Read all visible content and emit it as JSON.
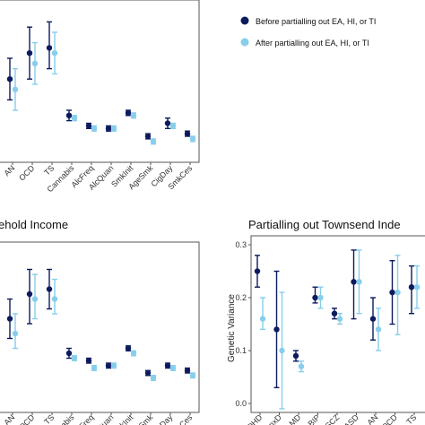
{
  "colors": {
    "before": "#0d1b5e",
    "after": "#87ceeb",
    "frame": "#555555",
    "tick": "#333333"
  },
  "legend": {
    "before_label": "Before partialling out EA, HI, or TI",
    "after_label": "After partialling out EA, HI, or TI"
  },
  "chart_data": [
    {
      "type": "scatter",
      "panel": "top",
      "title": "",
      "xlabel": "",
      "ylabel": "",
      "ylim": [
        0.0,
        0.3
      ],
      "categories": [
        "AN",
        "OCD",
        "TS",
        "Cannabis",
        "AlcFreq",
        "AlcQuan",
        "SmkInit",
        "AgeSmk",
        "CigDay",
        "SmkCes"
      ],
      "series": [
        {
          "name": "Before partialling out EA, HI, or TI",
          "values": [
            0.16,
            0.21,
            0.22,
            0.09,
            0.07,
            0.065,
            0.095,
            0.05,
            0.075,
            0.055
          ],
          "lower": [
            0.12,
            0.16,
            0.18,
            0.08,
            0.065,
            0.06,
            0.09,
            0.045,
            0.065,
            0.05
          ],
          "upper": [
            0.2,
            0.26,
            0.27,
            0.1,
            0.075,
            0.07,
            0.1,
            0.055,
            0.085,
            0.06
          ]
        },
        {
          "name": "After partialling out EA, HI, or TI",
          "values": [
            0.14,
            0.19,
            0.21,
            0.085,
            0.065,
            0.065,
            0.09,
            0.04,
            0.07,
            0.045
          ],
          "lower": [
            0.1,
            0.15,
            0.17,
            0.08,
            0.06,
            0.06,
            0.085,
            0.035,
            0.065,
            0.04
          ],
          "upper": [
            0.18,
            0.23,
            0.25,
            0.09,
            0.07,
            0.07,
            0.095,
            0.045,
            0.075,
            0.05
          ]
        }
      ]
    },
    {
      "type": "scatter",
      "panel": "bottom-left",
      "title": "ehold Income",
      "xlabel": "",
      "ylabel": "",
      "ylim": [
        0.0,
        0.3
      ],
      "categories": [
        "AN",
        "OCD",
        "TS",
        "Cannabis",
        "AlcFreq",
        "AlcQuan",
        "SmkInit",
        "AgeSmk",
        "CigDay",
        "SmkCes"
      ],
      "series": [
        {
          "name": "Before partialling out EA, HI, or TI",
          "values": [
            0.16,
            0.21,
            0.22,
            0.09,
            0.075,
            0.065,
            0.1,
            0.05,
            0.065,
            0.055
          ],
          "lower": [
            0.12,
            0.15,
            0.18,
            0.08,
            0.07,
            0.06,
            0.095,
            0.045,
            0.06,
            0.05
          ],
          "upper": [
            0.2,
            0.26,
            0.26,
            0.1,
            0.08,
            0.07,
            0.105,
            0.055,
            0.07,
            0.06
          ]
        },
        {
          "name": "After partialling out EA, HI, or TI",
          "values": [
            0.13,
            0.2,
            0.2,
            0.08,
            0.06,
            0.065,
            0.09,
            0.04,
            0.06,
            0.045
          ],
          "lower": [
            0.1,
            0.16,
            0.17,
            0.075,
            0.055,
            0.06,
            0.085,
            0.035,
            0.055,
            0.04
          ],
          "upper": [
            0.17,
            0.25,
            0.24,
            0.085,
            0.065,
            0.07,
            0.095,
            0.045,
            0.065,
            0.05
          ]
        }
      ]
    },
    {
      "type": "scatter",
      "panel": "bottom-right",
      "title": "Partialling out Townsend Inde",
      "xlabel": "",
      "ylabel": "Genetic Variance",
      "ylim": [
        0.0,
        0.3
      ],
      "yticks": [
        "0.0",
        "0.1",
        "0.2",
        "0.3"
      ],
      "categories": [
        "ADHD",
        "AnxD",
        "MD",
        "BIP",
        "SCZ",
        "ASD",
        "AN",
        "OCD",
        "TS"
      ],
      "series": [
        {
          "name": "Before partialling out EA, HI, or TI",
          "values": [
            0.25,
            0.14,
            0.09,
            0.2,
            0.17,
            0.23,
            0.16,
            0.21,
            0.22
          ],
          "lower": [
            0.22,
            0.03,
            0.08,
            0.19,
            0.16,
            0.16,
            0.12,
            0.15,
            0.17
          ],
          "upper": [
            0.28,
            0.25,
            0.1,
            0.22,
            0.18,
            0.29,
            0.2,
            0.27,
            0.26
          ]
        },
        {
          "name": "After partialling out EA, HI, or TI",
          "values": [
            0.16,
            0.1,
            0.07,
            0.2,
            0.16,
            0.23,
            0.14,
            0.21,
            0.22
          ],
          "lower": [
            0.14,
            -0.01,
            0.06,
            0.18,
            0.15,
            0.17,
            0.1,
            0.13,
            0.18
          ],
          "upper": [
            0.2,
            0.21,
            0.08,
            0.22,
            0.17,
            0.29,
            0.18,
            0.28,
            0.26
          ]
        }
      ]
    }
  ]
}
